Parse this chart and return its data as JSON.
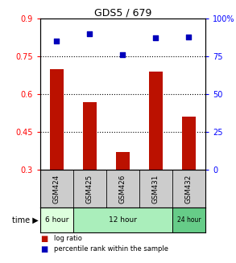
{
  "title": "GDS5 / 679",
  "samples": [
    "GSM424",
    "GSM425",
    "GSM426",
    "GSM431",
    "GSM432"
  ],
  "log_ratio": [
    0.7,
    0.57,
    0.37,
    0.69,
    0.51
  ],
  "percentile_rank": [
    85,
    90,
    76,
    87,
    88
  ],
  "bar_color": "#bb1100",
  "dot_color": "#0000bb",
  "ylim_left": [
    0.3,
    0.9
  ],
  "ylim_right": [
    0,
    100
  ],
  "yticks_left": [
    0.3,
    0.45,
    0.6,
    0.75,
    0.9
  ],
  "yticks_right": [
    0,
    25,
    50,
    75,
    100
  ],
  "hlines": [
    0.45,
    0.6,
    0.75
  ],
  "time_groups": [
    {
      "label": "6 hour",
      "start": 0,
      "end": 1,
      "color": "#ddffdd"
    },
    {
      "label": "12 hour",
      "start": 1,
      "end": 4,
      "color": "#aaeebb"
    },
    {
      "label": "24 hour",
      "start": 4,
      "end": 5,
      "color": "#66cc88"
    }
  ],
  "label_bg": "#cccccc",
  "legend_bar_label": "log ratio",
  "legend_dot_label": "percentile rank within the sample"
}
